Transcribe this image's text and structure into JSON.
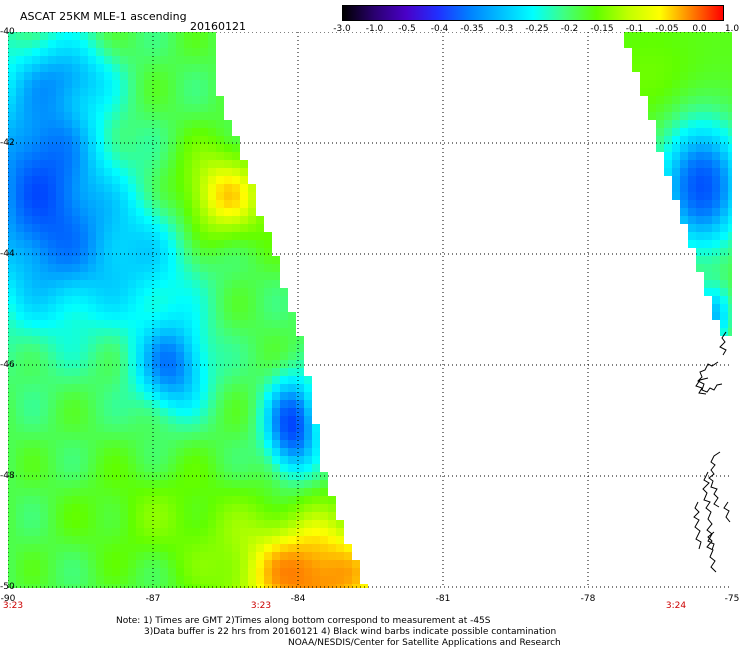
{
  "header": {
    "title": "ASCAT 25KM MLE-1 ascending",
    "date": "20160121"
  },
  "colorbar": {
    "labels": [
      "-3.0",
      "-1.0",
      "-0.5",
      "-0.4",
      "-0.35",
      "-0.3",
      "-0.25",
      "-0.2",
      "-0.15",
      "-0.1",
      "-0.05",
      "0.0",
      "1.0"
    ],
    "colors": [
      "#000000",
      "#2a0070",
      "#4a00c8",
      "#2030ff",
      "#0080ff",
      "#00c0ff",
      "#00ffff",
      "#40ff80",
      "#60ff00",
      "#c0ff00",
      "#ffff00",
      "#ff8000",
      "#ff0000"
    ]
  },
  "map": {
    "lat_ticks": [
      "-40",
      "-42",
      "-44",
      "-46",
      "-48",
      "-50"
    ],
    "lon_ticks": [
      "-90",
      "-87",
      "-84",
      "-81",
      "-78",
      "-75"
    ],
    "time_labels": [
      "3:23",
      "3:23",
      "3:24"
    ],
    "gridlines": true
  },
  "notes": [
    "Note: 1) Times are GMT 2)Times along bottom correspond to measurement at -45S",
    "3)Data buffer is 22 hrs from 20160121 4) Black wind barbs indicate possible contamination",
    "NOAA/NESDIS/Center for Satellite Applications and Research"
  ]
}
